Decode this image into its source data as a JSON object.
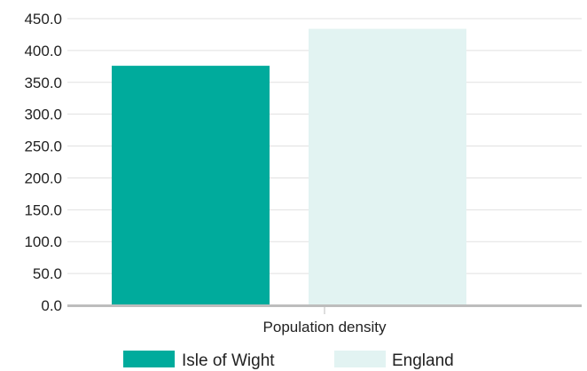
{
  "chart_data": {
    "type": "bar",
    "categories": [
      "Population density"
    ],
    "series": [
      {
        "name": "Isle of Wight",
        "values": [
          376.0
        ],
        "color": "#00ab9c"
      },
      {
        "name": "England",
        "values": [
          434.0
        ],
        "color": "#e2f3f2"
      }
    ],
    "ylim": [
      0,
      450
    ],
    "yticks": [
      0,
      50,
      100,
      150,
      200,
      250,
      300,
      350,
      400,
      450
    ],
    "ytick_labels": [
      "0.0",
      "50.0",
      "100.0",
      "150.0",
      "200.0",
      "250.0",
      "300.0",
      "350.0",
      "400.0",
      "450.0"
    ],
    "grid": true,
    "legend_position": "bottom"
  }
}
